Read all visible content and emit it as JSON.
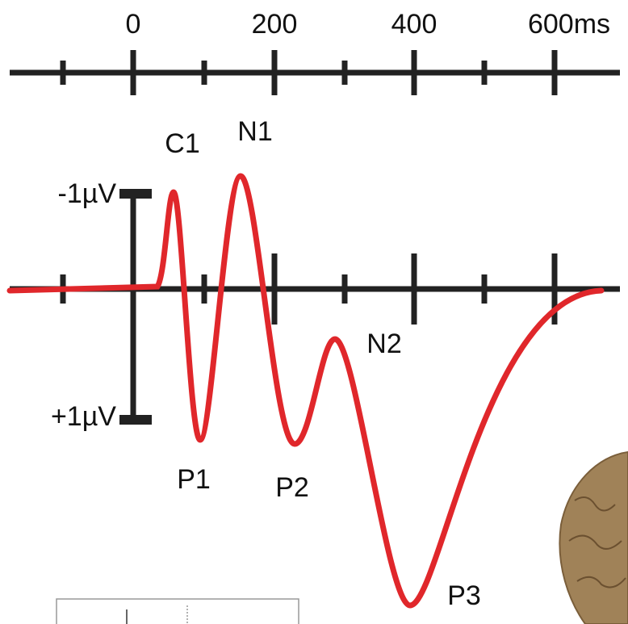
{
  "time_axis": {
    "labels": [
      "0",
      "200",
      "400",
      "600ms"
    ]
  },
  "scale_bar": {
    "top": "-1µV",
    "bottom": "+1µV"
  },
  "components": [
    {
      "label": "C1"
    },
    {
      "label": "N1"
    },
    {
      "label": "N2"
    },
    {
      "label": "P1"
    },
    {
      "label": "P2"
    },
    {
      "label": "P3"
    }
  ]
}
